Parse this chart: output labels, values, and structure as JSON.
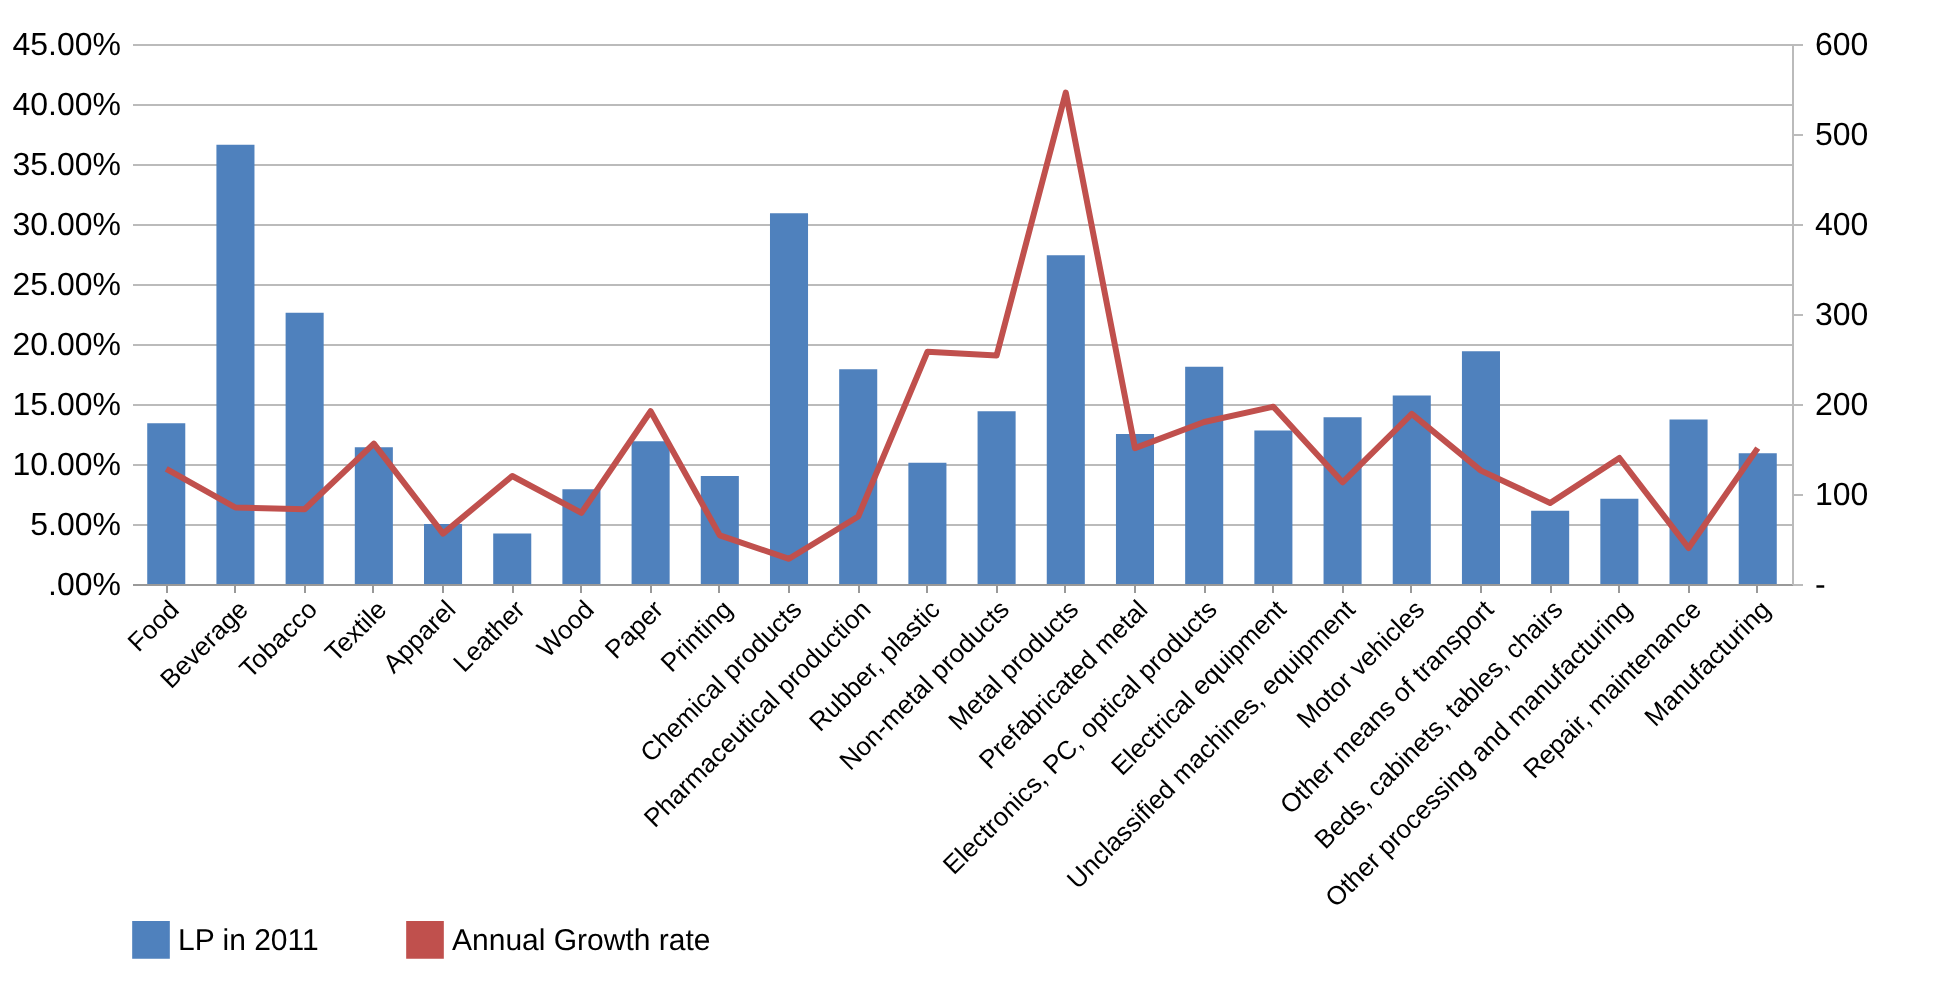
{
  "chart_data": {
    "type": "bar",
    "categories": [
      "Food",
      "Beverage",
      "Tobacco",
      "Textile",
      "Apparel",
      "Leather",
      "Wood",
      "Paper",
      "Printing",
      "Chemical products",
      "Pharmaceutical production",
      "Rubber, plastic",
      "Non-metal products",
      "Metal products",
      "Prefabricated metal",
      "Electronics, PC, optical products",
      "Electrical equipment",
      "Unclassified machines, equipment",
      "Motor vehicles",
      "Other means of transport",
      "Beds, cabinets, tables, chairs",
      "Other processing and manufacturing",
      "Repair, maintenance",
      "Manufacturing"
    ],
    "series": [
      {
        "name": "LP in 2011",
        "color": "#4f81bd",
        "values": [
          13.4,
          36.6,
          22.6,
          11.4,
          5.0,
          4.2,
          7.9,
          11.9,
          9.0,
          30.9,
          17.9,
          10.1,
          14.4,
          27.4,
          12.5,
          18.1,
          12.8,
          13.9,
          15.7,
          19.4,
          6.1,
          7.1,
          13.7,
          10.9
        ]
      },
      {
        "name": "Annual Growth rate",
        "type": "line",
        "axis": "y2",
        "color": "#c0504d",
        "values": [
          128,
          85,
          83,
          156,
          56,
          120,
          79,
          192,
          54,
          28,
          75,
          258,
          254,
          546,
          151,
          180,
          197,
          113,
          189,
          126,
          90,
          140,
          40,
          151
        ]
      }
    ],
    "ylim": [
      0,
      45
    ],
    "yticks": [
      {
        "value": 0,
        "label": ".00%"
      },
      {
        "value": 5,
        "label": "5.00%"
      },
      {
        "value": 10,
        "label": "10.00%"
      },
      {
        "value": 15,
        "label": "15.00%"
      },
      {
        "value": 20,
        "label": "20.00%"
      },
      {
        "value": 25,
        "label": "25.00%"
      },
      {
        "value": 30,
        "label": "30.00%"
      },
      {
        "value": 35,
        "label": "35.00%"
      },
      {
        "value": 40,
        "label": "40.00%"
      },
      {
        "value": 45,
        "label": "45.00%"
      }
    ],
    "y2lim": [
      0,
      600
    ],
    "y2ticks": [
      {
        "value": 0,
        "label": "-"
      },
      100,
      200,
      300,
      400,
      500,
      600
    ],
    "grid": "y",
    "legend": "bottom left",
    "marker": "none",
    "line_style": "solid"
  }
}
